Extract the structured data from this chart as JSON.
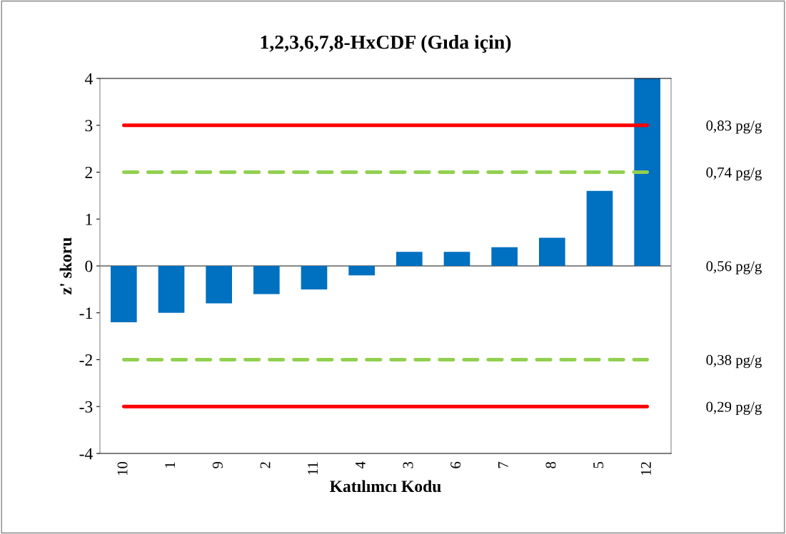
{
  "chart_data": {
    "type": "bar",
    "title": "1,2,3,6,7,8-HxCDF (Gıda için)",
    "xlabel": "Katılımcı Kodu",
    "ylabel": "z' skoru",
    "categories": [
      "10",
      "1",
      "9",
      "2",
      "11",
      "4",
      "3",
      "6",
      "7",
      "8",
      "5",
      "12"
    ],
    "values": [
      -1.2,
      -1.0,
      -0.8,
      -0.6,
      -0.5,
      -0.2,
      0.3,
      0.3,
      0.4,
      0.6,
      1.6,
      4
    ],
    "color": "#0070c0",
    "ylim": [
      -4,
      4
    ],
    "yticks": [
      -4,
      -3,
      -2,
      -1,
      0,
      1,
      2,
      3,
      4
    ],
    "y2lim": [
      0.2,
      0.92
    ],
    "y2ticks": [
      {
        "value": 0.83,
        "label": "0,83 pg/g"
      },
      {
        "value": 0.74,
        "label": "0,74 pg/g"
      },
      {
        "value": 0.56,
        "label": "0,56 pg/g"
      },
      {
        "value": 0.38,
        "label": "0,38 pg/g"
      },
      {
        "value": 0.29,
        "label": "0,29 pg/g"
      }
    ],
    "ref_lines": [
      {
        "axis": "y",
        "value": 3,
        "color": "#ff0000",
        "line_style": "solid"
      },
      {
        "axis": "y",
        "value": 2,
        "color": "#92d050",
        "line_style": "dashed"
      },
      {
        "axis": "y",
        "value": -2,
        "color": "#92d050",
        "line_style": "dashed"
      },
      {
        "axis": "y",
        "value": -3,
        "color": "#ff0000",
        "line_style": "solid"
      }
    ],
    "grid": false,
    "legend": false
  }
}
